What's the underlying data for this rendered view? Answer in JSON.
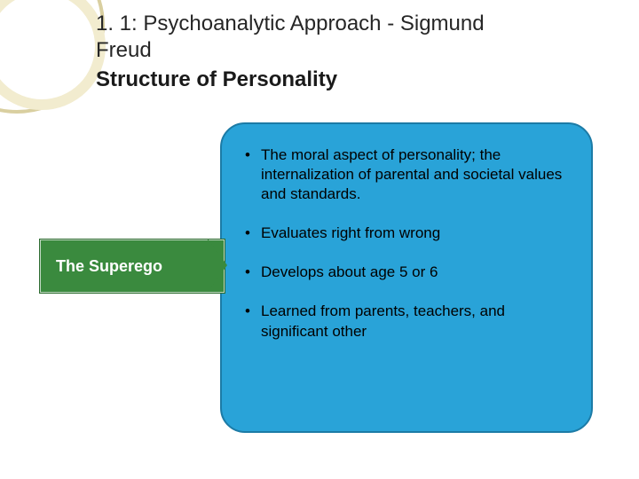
{
  "title": {
    "line1": "1. 1: Psychoanalytic Approach - Sigmund",
    "line2": "Freud",
    "subtitle": "Structure of Personality",
    "fontsize": 24,
    "color": "#262626"
  },
  "label": {
    "text": "The Superego",
    "bg_color": "#3a8a3e",
    "text_color": "#ffffff",
    "fontsize": 18
  },
  "content": {
    "bg_color": "#29a3d8",
    "border_color": "#1c7ba6",
    "border_radius": 28,
    "fontsize": 17,
    "bullets": [
      "The moral aspect of personality; the internalization of parental and societal values and standards.",
      "Evaluates right from wrong",
      "Develops about age 5 or 6",
      "Learned from parents, teachers, and significant other"
    ]
  },
  "decor": {
    "outer_ring_color": "#d9cfa0",
    "inner_ring_color": "#f2eccf"
  }
}
